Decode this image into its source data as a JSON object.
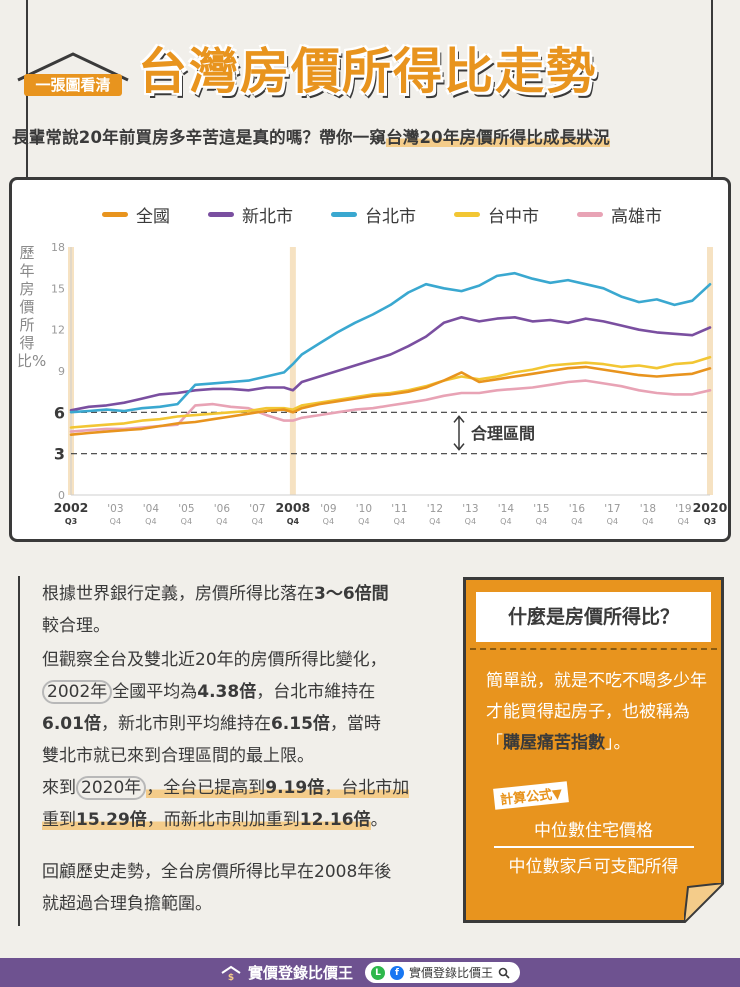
{
  "header": {
    "badge": "一張圖看清",
    "title": "台灣房價所得比走勢",
    "subtitle_pre": "長輩常說20年前買房多辛苦這是真的嗎？帶你一窺",
    "subtitle_hl": "台灣20年房價所得比成長狀況"
  },
  "colors": {
    "accent": "#e8941e",
    "national": "#e8941e",
    "new_taipei": "#7a4fa0",
    "taipei": "#3aa8d0",
    "taichung": "#f2c633",
    "kaohsiung": "#e8a3b5",
    "footer": "#6e5290"
  },
  "chart_data": {
    "type": "line",
    "title": "台灣房價所得比走勢",
    "ylabel": "歷年房價所得比%",
    "ylim": [
      0,
      18
    ],
    "yticks": [
      0,
      3,
      6,
      9,
      12,
      15,
      18
    ],
    "bold_yticks": [
      3,
      6
    ],
    "xlim": [
      2002.5,
      2020.5
    ],
    "highlight_x": [
      2002.5,
      2008.75,
      2020.5
    ],
    "x_ticks": [
      {
        "x": 2002.5,
        "top": "2002",
        "bottom": "Q3",
        "bold": true
      },
      {
        "x": 2003.75,
        "top": "'03",
        "bottom": "Q4",
        "bold": false
      },
      {
        "x": 2004.75,
        "top": "'04",
        "bottom": "Q4",
        "bold": false
      },
      {
        "x": 2005.75,
        "top": "'05",
        "bottom": "Q4",
        "bold": false
      },
      {
        "x": 2006.75,
        "top": "'06",
        "bottom": "Q4",
        "bold": false
      },
      {
        "x": 2007.75,
        "top": "'07",
        "bottom": "Q4",
        "bold": false
      },
      {
        "x": 2008.75,
        "top": "2008",
        "bottom": "Q4",
        "bold": true
      },
      {
        "x": 2009.75,
        "top": "'09",
        "bottom": "Q4",
        "bold": false
      },
      {
        "x": 2010.75,
        "top": "'10",
        "bottom": "Q4",
        "bold": false
      },
      {
        "x": 2011.75,
        "top": "'11",
        "bottom": "Q4",
        "bold": false
      },
      {
        "x": 2012.75,
        "top": "'12",
        "bottom": "Q4",
        "bold": false
      },
      {
        "x": 2013.75,
        "top": "'13",
        "bottom": "Q4",
        "bold": false
      },
      {
        "x": 2014.75,
        "top": "'14",
        "bottom": "Q4",
        "bold": false
      },
      {
        "x": 2015.75,
        "top": "'15",
        "bottom": "Q4",
        "bold": false
      },
      {
        "x": 2016.75,
        "top": "'16",
        "bottom": "Q4",
        "bold": false
      },
      {
        "x": 2017.75,
        "top": "'17",
        "bottom": "Q4",
        "bold": false
      },
      {
        "x": 2018.75,
        "top": "'18",
        "bottom": "Q4",
        "bold": false
      },
      {
        "x": 2019.75,
        "top": "'19",
        "bottom": "Q4",
        "bold": false
      },
      {
        "x": 2020.5,
        "top": "2020",
        "bottom": "Q3",
        "bold": true
      }
    ],
    "reference_lines": [
      3,
      6
    ],
    "annotation": "合理區間",
    "x": [
      2002.5,
      2003,
      2003.5,
      2004,
      2004.5,
      2005,
      2005.5,
      2006,
      2006.5,
      2007,
      2007.5,
      2008,
      2008.5,
      2008.75,
      2009,
      2009.5,
      2010,
      2010.5,
      2011,
      2011.5,
      2012,
      2012.5,
      2013,
      2013.5,
      2014,
      2014.5,
      2015,
      2015.5,
      2016,
      2016.5,
      2017,
      2017.5,
      2018,
      2018.5,
      2019,
      2019.5,
      2020,
      2020.5
    ],
    "series": [
      {
        "name": "全國",
        "color": "#e8941e",
        "values": [
          4.38,
          4.5,
          4.6,
          4.7,
          4.8,
          5.0,
          5.2,
          5.3,
          5.5,
          5.7,
          5.9,
          6.1,
          6.2,
          6.0,
          6.3,
          6.6,
          6.8,
          7.0,
          7.2,
          7.3,
          7.5,
          7.8,
          8.3,
          8.9,
          8.2,
          8.4,
          8.6,
          8.8,
          9.0,
          9.2,
          9.3,
          9.1,
          8.9,
          8.7,
          8.6,
          8.7,
          8.8,
          9.19
        ]
      },
      {
        "name": "新北市",
        "color": "#7a4fa0",
        "values": [
          6.15,
          6.4,
          6.5,
          6.7,
          7.0,
          7.3,
          7.4,
          7.6,
          7.7,
          7.7,
          7.6,
          7.8,
          7.8,
          7.6,
          8.2,
          8.6,
          9.0,
          9.4,
          9.8,
          10.2,
          10.8,
          11.5,
          12.5,
          12.9,
          12.6,
          12.8,
          12.9,
          12.6,
          12.7,
          12.5,
          12.8,
          12.6,
          12.3,
          12.0,
          11.8,
          11.7,
          11.6,
          12.16
        ]
      },
      {
        "name": "台北市",
        "color": "#3aa8d0",
        "values": [
          6.01,
          6.1,
          6.2,
          6.1,
          6.3,
          6.4,
          6.6,
          8.0,
          8.1,
          8.2,
          8.3,
          8.6,
          8.9,
          9.5,
          10.2,
          11.0,
          11.8,
          12.5,
          13.1,
          13.8,
          14.7,
          15.3,
          15.0,
          14.8,
          15.2,
          15.9,
          16.1,
          15.7,
          15.4,
          15.6,
          15.3,
          15.0,
          14.4,
          14.0,
          14.2,
          13.8,
          14.1,
          15.29
        ]
      },
      {
        "name": "台中市",
        "color": "#f2c633",
        "values": [
          4.9,
          5.0,
          5.1,
          5.2,
          5.4,
          5.5,
          5.7,
          5.8,
          5.9,
          6.0,
          6.1,
          6.3,
          6.3,
          6.2,
          6.5,
          6.7,
          6.9,
          7.1,
          7.3,
          7.4,
          7.6,
          7.9,
          8.3,
          8.6,
          8.4,
          8.6,
          8.9,
          9.1,
          9.4,
          9.5,
          9.6,
          9.5,
          9.3,
          9.4,
          9.2,
          9.5,
          9.6,
          10.0
        ]
      },
      {
        "name": "高雄市",
        "color": "#e8a3b5",
        "values": [
          4.6,
          4.7,
          4.8,
          4.8,
          4.9,
          5.0,
          5.1,
          6.5,
          6.6,
          6.4,
          6.3,
          5.8,
          5.4,
          5.4,
          5.6,
          5.8,
          6.0,
          6.2,
          6.3,
          6.5,
          6.7,
          6.9,
          7.2,
          7.4,
          7.4,
          7.6,
          7.7,
          7.8,
          8.0,
          8.2,
          8.3,
          8.1,
          7.9,
          7.6,
          7.4,
          7.3,
          7.3,
          7.6
        ]
      }
    ]
  },
  "text_section": {
    "p1": [
      "根據世界銀行定義，房價所得比落在",
      "3～6倍間",
      "較合理。"
    ],
    "p2_line1": "但觀察全台及雙北近20年的房價所得比變化，",
    "p2_year": "2002年",
    "p2_a": "全國平均為",
    "p2_v1": "4.38倍",
    "p2_b": "，台北市維持在",
    "p2_v2": "6.01倍",
    "p2_c": "，新北市則平均維持在",
    "p2_v3": "6.15倍",
    "p2_d": "，當時",
    "p2_line4": "雙北市就已來到合理區間的最上限。",
    "p3_pre": "來到",
    "p3_year": "2020年",
    "p3_a": "，全台已提高到",
    "p3_v1": "9.19倍",
    "p3_b": "，台北市加",
    "p3_c": "重到",
    "p3_v2": "15.29倍",
    "p3_d": "，而新北市則加重到",
    "p3_v3": "12.16倍",
    "p3_e": "。",
    "p4_line1": "回顧歷史走勢，全台房價所得比早在2008年後",
    "p4_line2": "就超過合理負擔範圍。"
  },
  "definition": {
    "title": "什麼是房價所得比？",
    "text_a": "簡單說，就是不吃不喝多少年才能買得起房子，也被稱為「",
    "text_bold": "購屋痛苦指數",
    "text_b": "」。",
    "formula_tag": "計算公式▼",
    "numerator": "中位數住宅價格",
    "denominator": "中位數家戶可支配所得"
  },
  "footer": {
    "brand": "實價登錄比價王",
    "social_label": "實價登錄比價王",
    "line_icon": "line-icon",
    "fb_icon": "facebook-icon",
    "search_icon": "search-icon"
  }
}
